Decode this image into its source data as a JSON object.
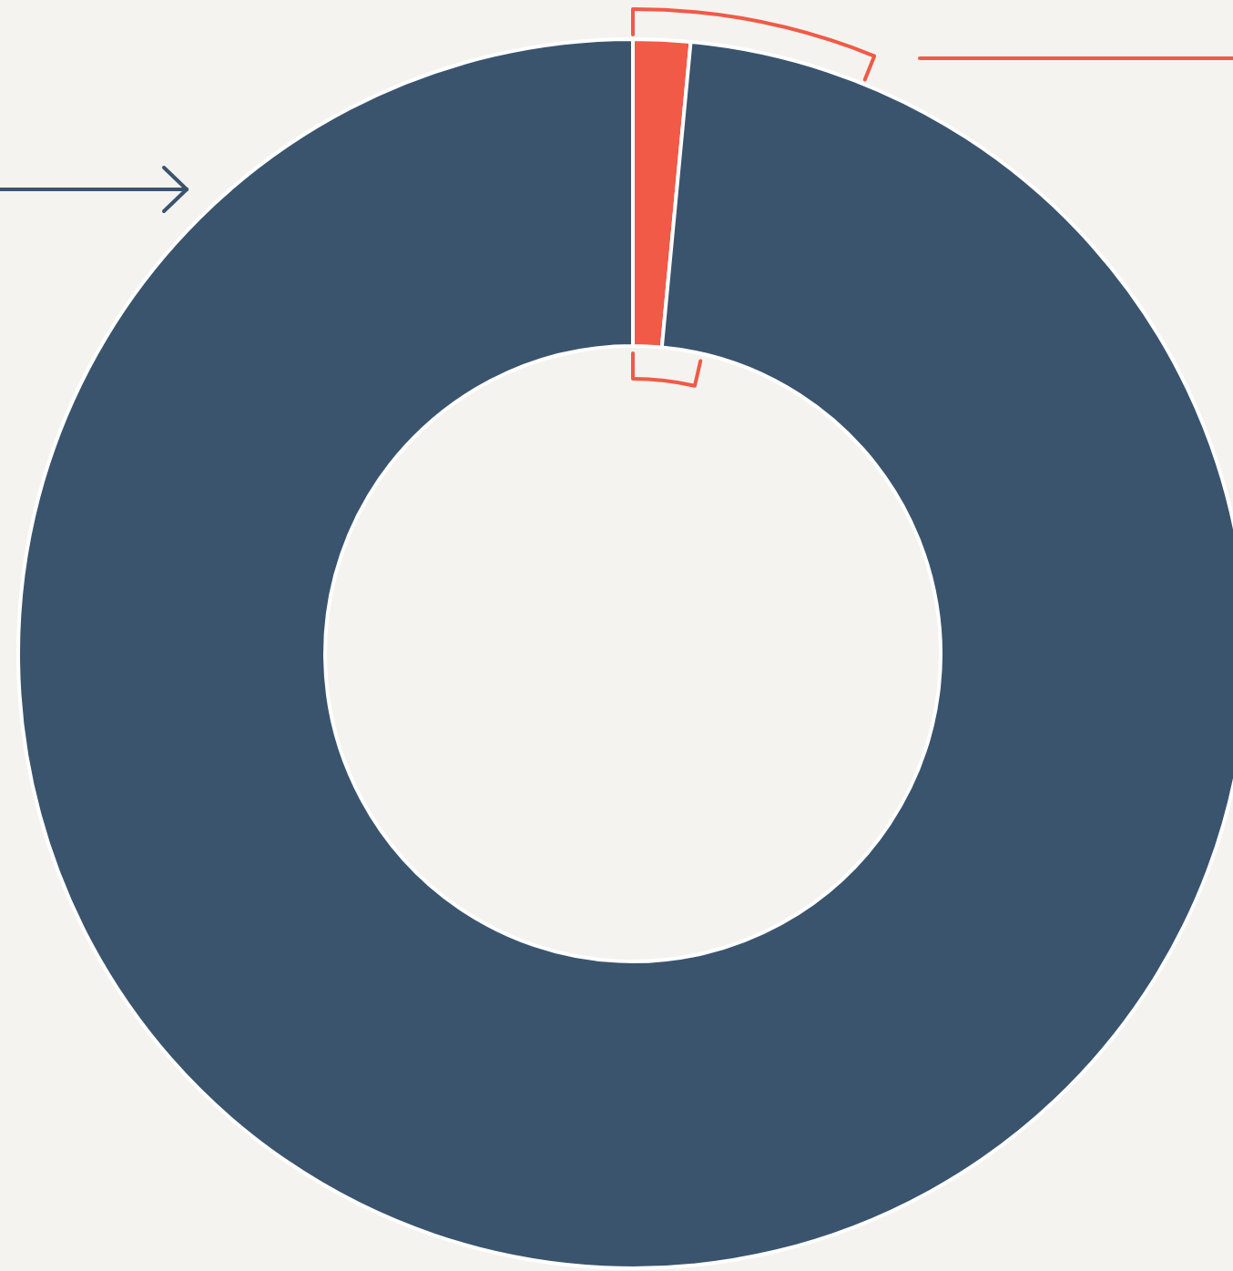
{
  "chart_data": {
    "type": "donut",
    "categories": [
      null,
      null
    ],
    "values": [
      1.5,
      98.5
    ],
    "colors": [
      "#f05a46",
      "#3a546e"
    ]
  }
}
